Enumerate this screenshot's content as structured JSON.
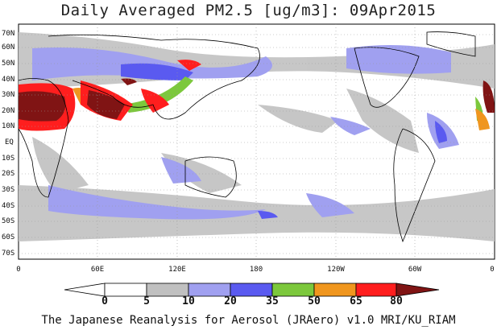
{
  "title": "Daily Averaged PM2.5 [ug/m3]: 09Apr2015",
  "footer": "The Japanese Reanalysis for Aerosol (JRAero) v1.0 MRI/KU_RIAM",
  "lat_labels": [
    "70N",
    "60N",
    "50N",
    "40N",
    "30N",
    "20N",
    "10N",
    "EQ",
    "10S",
    "20S",
    "30S",
    "40S",
    "50S",
    "60S",
    "70S"
  ],
  "lon_labels": [
    "0",
    "60E",
    "120E",
    "180",
    "120W",
    "60W",
    "0"
  ],
  "colorbar": {
    "thresholds": [
      "0",
      "5",
      "10",
      "20",
      "35",
      "50",
      "65",
      "80"
    ],
    "colors": [
      "#ffffff",
      "#ffffff",
      "#c0c0c0",
      "#a0a0f0",
      "#5a5af0",
      "#7cc83c",
      "#f0961e",
      "#ff1e1e",
      "#801414",
      "#8c0000"
    ]
  }
}
